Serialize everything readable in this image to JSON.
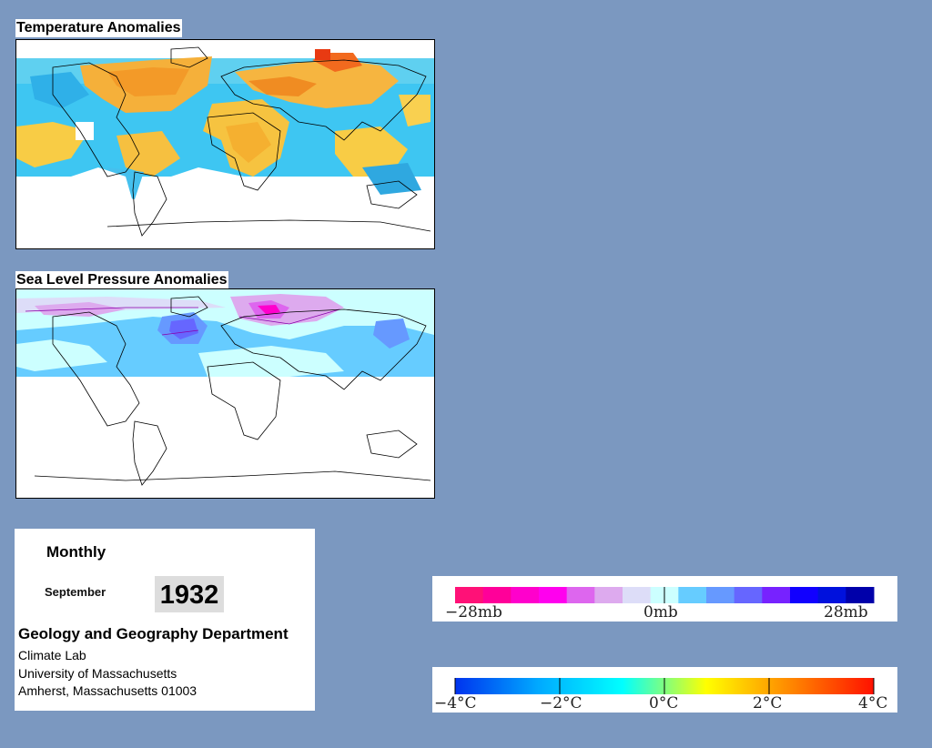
{
  "temperature_map": {
    "title": "Temperature Anomalies"
  },
  "pressure_map": {
    "title": "Sea Level Pressure Anomalies"
  },
  "info": {
    "frequency": "Monthly",
    "month": "September",
    "year": "1932",
    "department": "Geology and Geography Department",
    "lab": "Climate Lab",
    "university": "University of Massachusetts",
    "address": "Amherst, Massachusetts 01003"
  },
  "pressure_legend": {
    "labels": [
      "−28mb",
      "0mb",
      "28mb"
    ],
    "colors": [
      "#ff1177",
      "#ff0099",
      "#ff00cc",
      "#ff00ee",
      "#dd66ee",
      "#ddaaee",
      "#ddddf8",
      "#ccffff",
      "#66ccff",
      "#6699ff",
      "#6666ff",
      "#7722ff",
      "#1100ff",
      "#0011dd",
      "#0000aa"
    ]
  },
  "temperature_legend": {
    "labels": [
      "−4°C",
      "−2°C",
      "0°C",
      "2°C",
      "4°C"
    ],
    "gradient": [
      "#0033ee",
      "#00aaff",
      "#00ffff",
      "#ffff00",
      "#ff8800",
      "#ff1100"
    ]
  }
}
